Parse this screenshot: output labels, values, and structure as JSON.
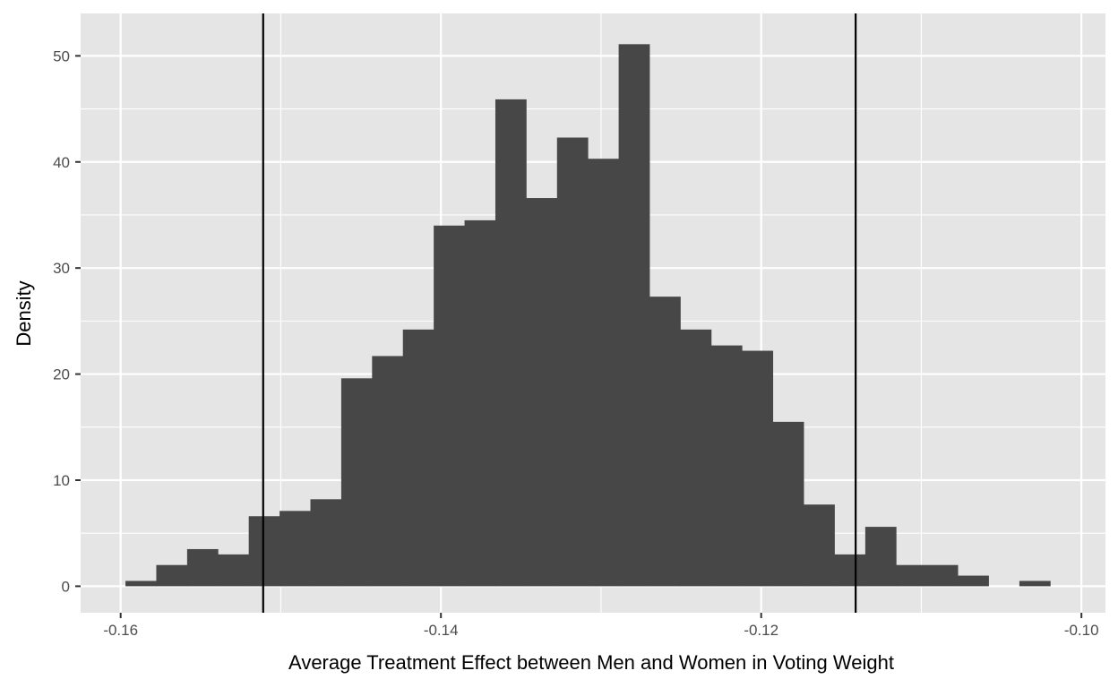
{
  "chart_data": {
    "type": "histogram",
    "xlabel": "Average Treatment Effect between Men and Women in Voting Weight",
    "ylabel": "Density",
    "xlim": [
      -0.1625,
      -0.0985
    ],
    "ylim": [
      -2.5,
      54
    ],
    "x_ticks": [
      -0.16,
      -0.14,
      -0.12,
      -0.1
    ],
    "x_tick_labels": [
      "-0.16",
      "-0.14",
      "-0.12",
      "-0.10"
    ],
    "y_ticks": [
      0,
      10,
      20,
      30,
      40,
      50
    ],
    "y_tick_labels": [
      "0",
      "10",
      "20",
      "30",
      "40",
      "50"
    ],
    "bin_start": -0.1597,
    "bin_width": 0.001925,
    "values": [
      0.5,
      2.0,
      3.5,
      3.0,
      6.6,
      7.1,
      8.2,
      19.6,
      21.7,
      24.2,
      34.0,
      34.5,
      45.9,
      36.6,
      42.3,
      40.3,
      51.1,
      27.3,
      24.2,
      22.7,
      22.2,
      15.5,
      7.7,
      3.0,
      5.6,
      2.0,
      2.0,
      1.0,
      0.0,
      0.5
    ],
    "vlines": [
      -0.1511,
      -0.1141
    ],
    "bar_color": "#474747",
    "panel_background": "#e5e5e5",
    "grid_color": "#ffffff",
    "vline_color": "#000000",
    "grid": true
  }
}
